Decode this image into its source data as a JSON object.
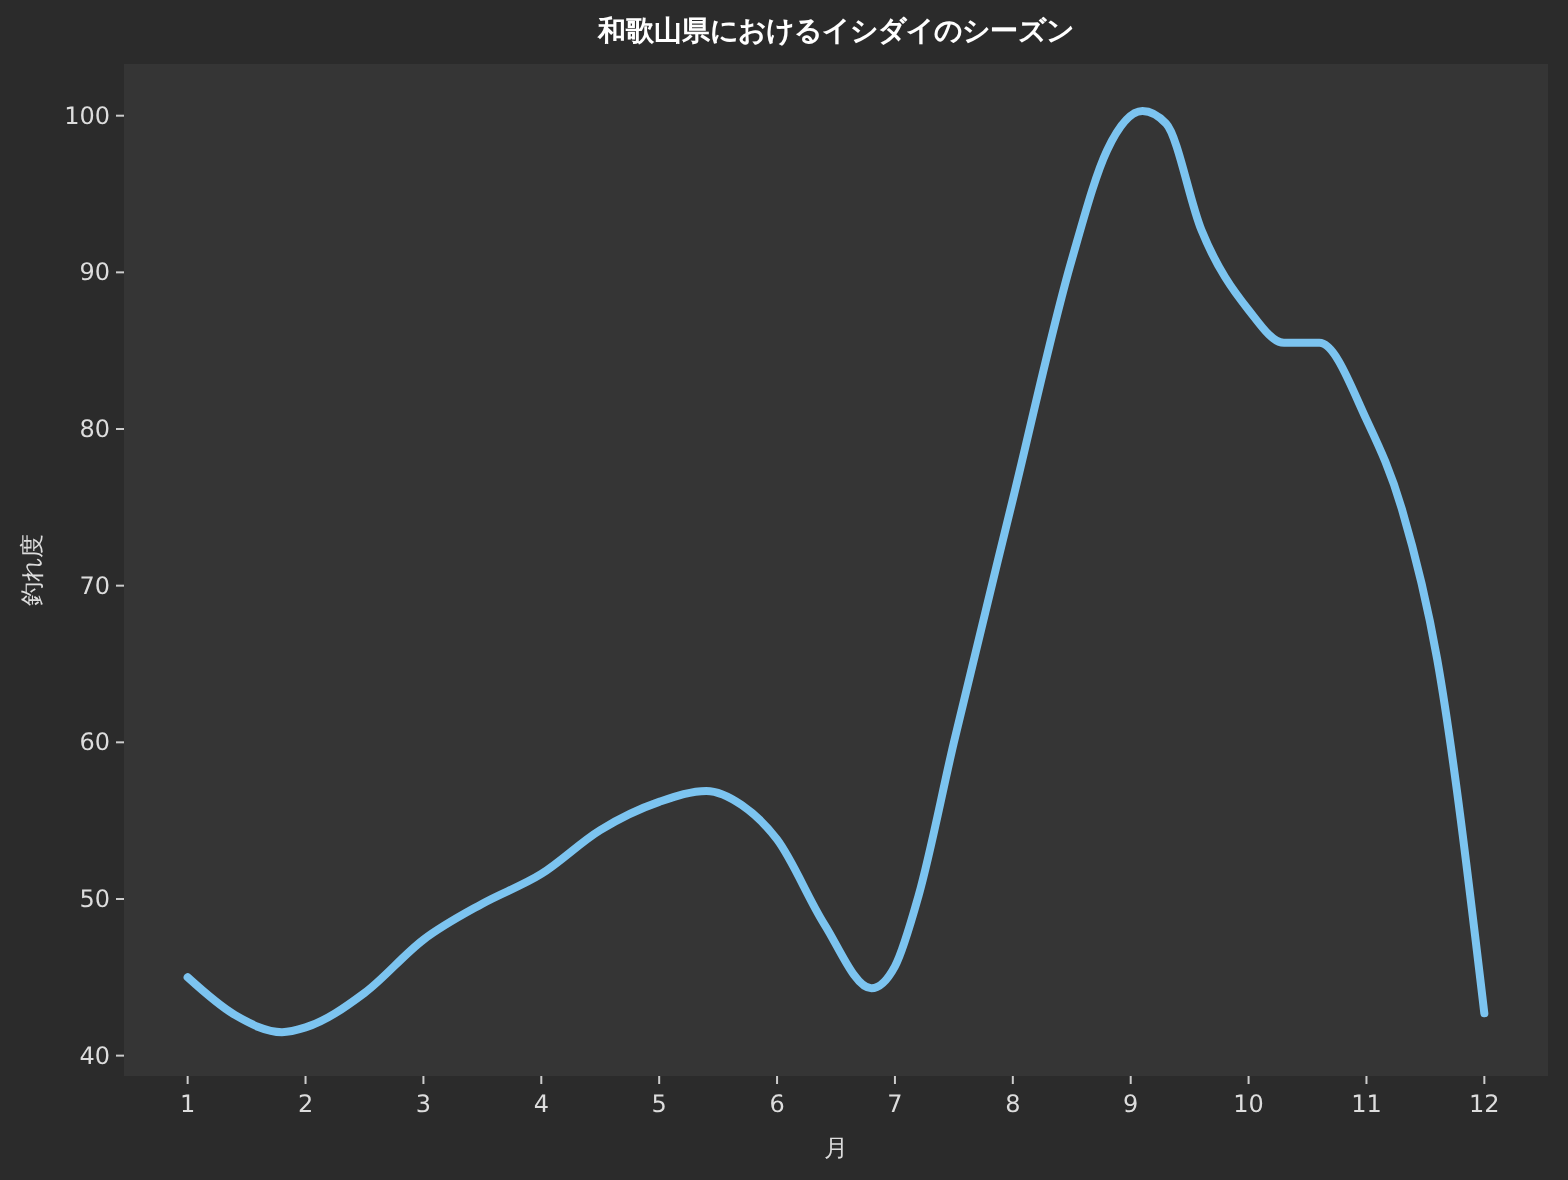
{
  "chart_data": {
    "type": "line",
    "title": "和歌山県におけるイシダイのシーズン",
    "xlabel": "月",
    "ylabel": "釣れ度",
    "x": [
      1,
      1.4,
      1.8,
      2,
      2.5,
      3,
      3.5,
      4,
      4.5,
      5,
      5.4,
      5.7,
      6,
      6.4,
      6.8,
      7,
      7.2,
      7.5,
      8,
      8.5,
      8.8,
      9.1,
      9.3,
      9.6,
      10,
      10.3,
      10.6,
      11,
      11.3,
      11.6,
      12
    ],
    "series": [
      {
        "color": "#7cc4f0",
        "values": [
          45,
          42.6,
          41.5,
          41.8,
          44,
          47.4,
          49.7,
          51.6,
          54.4,
          56.2,
          56.9,
          56,
          53.8,
          48.4,
          44.3,
          45.7,
          50.2,
          60,
          75.5,
          90.8,
          97.8,
          100.3,
          99.5,
          92.7,
          87.6,
          85.5,
          85.5,
          80.6,
          74.9,
          65.3,
          42.7
        ]
      }
    ],
    "xlim": [
      0.46,
      12.54
    ],
    "xticks": [
      1,
      2,
      3,
      4,
      5,
      6,
      7,
      8,
      9,
      10,
      11,
      12
    ],
    "ylim": [
      38.7,
      103.3
    ],
    "yticks": [
      40,
      50,
      60,
      70,
      80,
      90,
      100
    ],
    "grid": false,
    "marker": "none",
    "line_style": "solid"
  }
}
